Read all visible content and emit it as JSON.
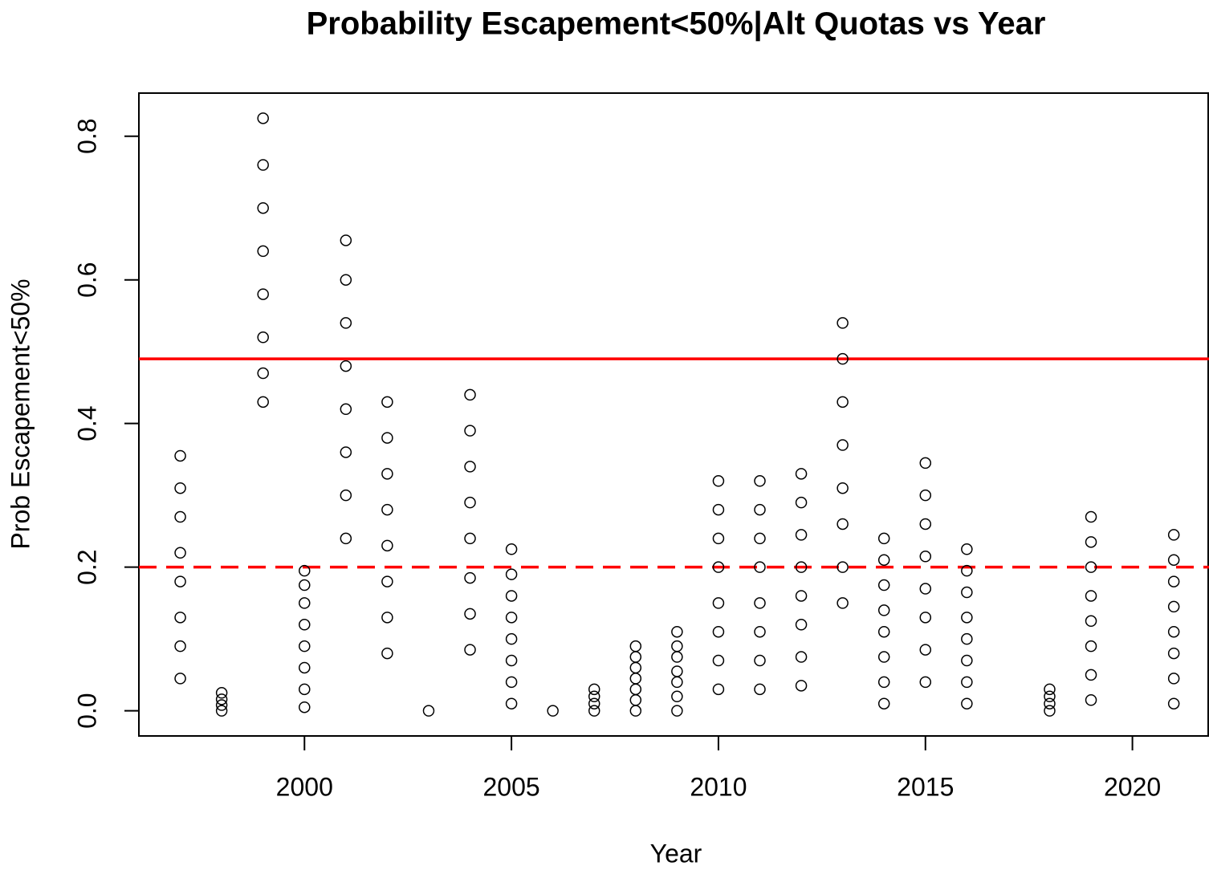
{
  "chart_data": {
    "type": "scatter",
    "title": "Probability Escapement<50%|Alt Quotas vs Year",
    "xlabel": "Year",
    "ylabel": "Prob Escapement<50%",
    "xlim": [
      1996,
      2021.85
    ],
    "ylim": [
      -0.035,
      0.86
    ],
    "xticks": [
      2000,
      2005,
      2010,
      2015,
      2020
    ],
    "yticks": [
      {
        "value": 0,
        "label": "0.0"
      },
      0.2,
      0.4,
      0.6,
      0.8
    ],
    "color": "#000000",
    "x": [
      1997,
      1997,
      1997,
      1997,
      1997,
      1997,
      1997,
      1997,
      1998,
      1998,
      1998,
      1998,
      1999,
      1999,
      1999,
      1999,
      1999,
      1999,
      1999,
      1999,
      2000,
      2000,
      2000,
      2000,
      2000,
      2000,
      2000,
      2000,
      2001,
      2001,
      2001,
      2001,
      2001,
      2001,
      2001,
      2001,
      2002,
      2002,
      2002,
      2002,
      2002,
      2002,
      2002,
      2002,
      2003,
      2004,
      2004,
      2004,
      2004,
      2004,
      2004,
      2004,
      2004,
      2005,
      2005,
      2005,
      2005,
      2005,
      2005,
      2005,
      2005,
      2006,
      2007,
      2007,
      2007,
      2007,
      2008,
      2008,
      2008,
      2008,
      2008,
      2008,
      2008,
      2009,
      2009,
      2009,
      2009,
      2009,
      2009,
      2009,
      2010,
      2010,
      2010,
      2010,
      2010,
      2010,
      2010,
      2010,
      2011,
      2011,
      2011,
      2011,
      2011,
      2011,
      2011,
      2011,
      2012,
      2012,
      2012,
      2012,
      2012,
      2012,
      2012,
      2012,
      2013,
      2013,
      2013,
      2013,
      2013,
      2013,
      2013,
      2013,
      2014,
      2014,
      2014,
      2014,
      2014,
      2014,
      2014,
      2014,
      2015,
      2015,
      2015,
      2015,
      2015,
      2015,
      2015,
      2015,
      2016,
      2016,
      2016,
      2016,
      2016,
      2016,
      2016,
      2016,
      2018,
      2018,
      2018,
      2018,
      2019,
      2019,
      2019,
      2019,
      2019,
      2019,
      2019,
      2019,
      2021,
      2021,
      2021,
      2021,
      2021,
      2021,
      2021,
      2021
    ],
    "values": [
      0.045,
      0.09,
      0.13,
      0.18,
      0.22,
      0.27,
      0.31,
      0.355,
      0,
      0.008,
      0.016,
      0.025,
      0.43,
      0.47,
      0.52,
      0.58,
      0.64,
      0.7,
      0.76,
      0.825,
      0.005,
      0.03,
      0.06,
      0.09,
      0.12,
      0.15,
      0.175,
      0.195,
      0.24,
      0.3,
      0.36,
      0.42,
      0.48,
      0.54,
      0.6,
      0.655,
      0.08,
      0.13,
      0.18,
      0.23,
      0.28,
      0.33,
      0.38,
      0.43,
      0,
      0.085,
      0.135,
      0.185,
      0.24,
      0.29,
      0.34,
      0.39,
      0.44,
      0.01,
      0.04,
      0.07,
      0.1,
      0.13,
      0.16,
      0.19,
      0.225,
      0,
      0,
      0.01,
      0.02,
      0.03,
      0,
      0.015,
      0.03,
      0.045,
      0.06,
      0.075,
      0.09,
      0,
      0.02,
      0.04,
      0.055,
      0.075,
      0.09,
      0.11,
      0.03,
      0.07,
      0.11,
      0.15,
      0.2,
      0.24,
      0.28,
      0.32,
      0.03,
      0.07,
      0.11,
      0.15,
      0.2,
      0.24,
      0.28,
      0.32,
      0.035,
      0.075,
      0.12,
      0.16,
      0.2,
      0.245,
      0.29,
      0.33,
      0.15,
      0.2,
      0.26,
      0.31,
      0.37,
      0.43,
      0.49,
      0.54,
      0.01,
      0.04,
      0.075,
      0.11,
      0.14,
      0.175,
      0.21,
      0.24,
      0.04,
      0.085,
      0.13,
      0.17,
      0.215,
      0.26,
      0.3,
      0.345,
      0.01,
      0.04,
      0.07,
      0.1,
      0.13,
      0.165,
      0.195,
      0.225,
      0,
      0.01,
      0.02,
      0.03,
      0.015,
      0.05,
      0.09,
      0.125,
      0.16,
      0.2,
      0.235,
      0.27,
      0.01,
      0.045,
      0.08,
      0.11,
      0.145,
      0.18,
      0.21,
      0.245
    ],
    "hlines": [
      {
        "value": 0.49,
        "color": "#ff0000",
        "style": "solid"
      },
      {
        "value": 0.2,
        "color": "#ff0000",
        "style": "dashed"
      }
    ]
  }
}
